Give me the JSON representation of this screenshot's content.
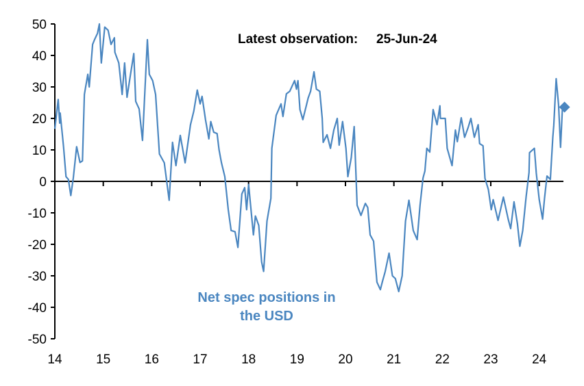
{
  "chart_data": {
    "type": "line",
    "title": "",
    "xlabel": "",
    "ylabel": "",
    "xlim": [
      14,
      24.5
    ],
    "ylim": [
      -50,
      50
    ],
    "x_ticks": [
      14,
      15,
      16,
      17,
      18,
      19,
      20,
      21,
      22,
      23,
      24
    ],
    "x_tick_labels": [
      "14",
      "15",
      "16",
      "17",
      "18",
      "19",
      "20",
      "21",
      "22",
      "23",
      "24"
    ],
    "y_ticks": [
      50,
      40,
      30,
      20,
      10,
      0,
      -10,
      -20,
      -30,
      -40,
      -50
    ],
    "y_tick_labels": [
      "50",
      "40",
      "30",
      "20",
      "10",
      "0",
      "-10",
      "-20",
      "-30",
      "-40",
      "-50"
    ],
    "grid": false,
    "colors": {
      "series": "#4a86c0",
      "axis": "#000000"
    },
    "annotations": {
      "latest_label": "Latest observation:",
      "latest_date": "25-Jun-24",
      "series_label_line1": "Net spec positions in",
      "series_label_line2": "the USD"
    },
    "latest_point": {
      "x": 24.48,
      "y": 23.6,
      "marker": "diamond"
    },
    "series": [
      {
        "x": [
          14.0,
          14.07,
          14.1,
          14.11,
          14.18,
          14.23,
          14.28,
          14.33,
          14.38,
          14.45,
          14.52,
          14.57,
          14.61,
          14.68,
          14.71,
          14.78,
          14.82,
          14.88,
          14.92,
          14.96,
          15.03,
          15.1,
          15.16,
          15.23,
          15.24,
          15.32,
          15.39,
          15.44,
          15.49,
          15.56,
          15.63,
          15.67,
          15.74,
          15.81,
          15.91,
          15.95,
          16.02,
          16.08,
          16.16,
          16.26,
          16.36,
          16.43,
          16.5,
          16.59,
          16.69,
          16.8,
          16.87,
          16.94,
          17.0,
          17.04,
          17.11,
          17.18,
          17.22,
          17.28,
          17.35,
          17.39,
          17.44,
          17.51,
          17.58,
          17.64,
          17.72,
          17.78,
          17.86,
          17.92,
          17.96,
          18.0,
          18.1,
          18.14,
          18.21,
          18.27,
          18.31,
          18.38,
          18.46,
          18.48,
          18.57,
          18.67,
          18.71,
          18.78,
          18.85,
          18.95,
          18.99,
          19.02,
          19.06,
          19.12,
          19.19,
          19.23,
          19.28,
          19.35,
          19.4,
          19.47,
          19.52,
          19.54,
          19.62,
          19.69,
          19.76,
          19.83,
          19.87,
          19.94,
          20.01,
          20.05,
          20.12,
          20.18,
          20.24,
          20.32,
          20.41,
          20.46,
          20.51,
          20.58,
          20.65,
          20.72,
          20.76,
          20.82,
          20.9,
          20.97,
          21.03,
          21.1,
          21.17,
          21.24,
          21.31,
          21.4,
          21.48,
          21.54,
          21.6,
          21.64,
          21.68,
          21.74,
          21.81,
          21.89,
          21.95,
          21.96,
          22.06,
          22.1,
          22.2,
          22.27,
          22.31,
          22.39,
          22.46,
          22.53,
          22.59,
          22.66,
          22.74,
          22.77,
          22.84,
          22.88,
          22.95,
          23.01,
          23.05,
          23.15,
          23.26,
          23.36,
          23.41,
          23.48,
          23.55,
          23.6,
          23.66,
          23.73,
          23.79,
          23.8,
          23.9,
          23.94,
          24.0,
          24.07,
          24.11,
          24.16,
          24.23,
          24.28,
          24.3,
          24.35,
          24.4,
          24.44,
          24.48
        ],
        "y": [
          16.7,
          26,
          18.5,
          21.7,
          11,
          1.5,
          0.6,
          -4.5,
          1,
          11,
          6,
          6.5,
          27.6,
          34,
          30,
          43.5,
          45,
          47,
          50,
          37.6,
          49,
          48,
          43.5,
          45.6,
          41,
          37.6,
          27.6,
          37.6,
          26.7,
          33.7,
          40.6,
          25.4,
          23,
          13,
          45,
          34,
          32,
          27.6,
          8.7,
          5.9,
          -6,
          12.4,
          5,
          14.6,
          5.9,
          18,
          22.4,
          29,
          24.6,
          27,
          19.6,
          13.5,
          19,
          15.6,
          15.2,
          10,
          5.9,
          1.5,
          -9,
          -15.6,
          -16,
          -21,
          -4,
          -2,
          -9,
          -1,
          -17,
          -11,
          -14,
          -25.6,
          -28.6,
          -12.6,
          -5.4,
          10.5,
          21,
          24.6,
          20.6,
          27.8,
          28.6,
          32,
          29.3,
          32,
          22.8,
          19.6,
          24,
          26.5,
          28.6,
          34.8,
          29.3,
          28.6,
          20,
          12.4,
          14.8,
          10.5,
          16.3,
          20,
          11.5,
          19,
          10.5,
          1.5,
          7.6,
          17.4,
          -7.6,
          -10.8,
          -7,
          -8.3,
          -17,
          -19,
          -32,
          -34.4,
          -32,
          -28.7,
          -22.8,
          -30,
          -30.9,
          -35,
          -30,
          -12.6,
          -6,
          -15.6,
          -18.5,
          -7.6,
          1,
          3.3,
          10.5,
          9.3,
          22.8,
          18,
          24,
          20,
          20,
          10.5,
          5,
          16.3,
          12.6,
          20.2,
          14,
          17,
          20,
          14,
          18,
          12,
          11.3,
          1,
          -2.6,
          -9,
          -5.8,
          -12.4,
          -5,
          -12,
          -15,
          -6.5,
          -13.5,
          -20.6,
          -15.6,
          -4.8,
          2.8,
          9.1,
          10.5,
          2.6,
          -5.8,
          -12,
          -5.4,
          1.7,
          0.6,
          14,
          17.8,
          32.6,
          24.3,
          10.8,
          23.6
        ]
      }
    ]
  }
}
